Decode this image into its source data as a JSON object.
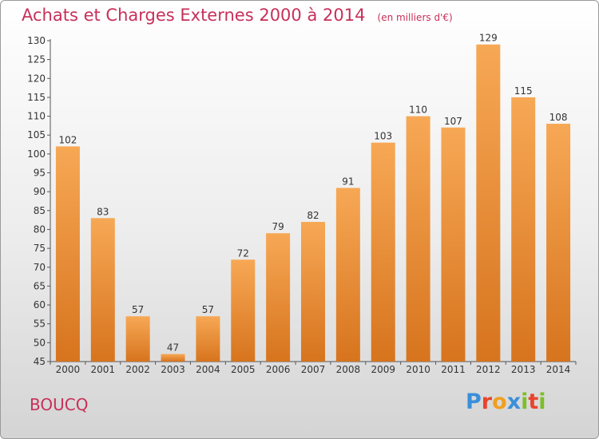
{
  "title": "Achats et Charges Externes 2000 à 2014",
  "unit": "(en milliers d'€)",
  "commune": "BOUCQ",
  "logo": {
    "text": "Proxiti",
    "letters": [
      {
        "ch": "P",
        "color": "#3a8fd9"
      },
      {
        "ch": "r",
        "color": "#e8452c"
      },
      {
        "ch": "o",
        "color": "#f0a020"
      },
      {
        "ch": "x",
        "color": "#3a8fd9"
      },
      {
        "ch": "i",
        "color": "#7cbf2a"
      },
      {
        "ch": "t",
        "color": "#e8452c"
      },
      {
        "ch": "i",
        "color": "#7cbf2a"
      }
    ]
  },
  "colors": {
    "bar_top": "#f7a855",
    "bar_bottom": "#d7741e",
    "title": "#c8305a"
  },
  "chart_data": {
    "type": "bar",
    "categories": [
      "2000",
      "2001",
      "2002",
      "2003",
      "2004",
      "2005",
      "2006",
      "2007",
      "2008",
      "2009",
      "2010",
      "2011",
      "2012",
      "2013",
      "2014"
    ],
    "values": [
      102,
      83,
      57,
      47,
      57,
      72,
      79,
      82,
      91,
      103,
      110,
      107,
      129,
      115,
      108
    ],
    "ylim": [
      45,
      130
    ],
    "yticks": [
      45,
      50,
      55,
      60,
      65,
      70,
      75,
      80,
      85,
      90,
      95,
      100,
      105,
      110,
      115,
      120,
      125,
      130
    ],
    "grid": false,
    "legend": "none"
  }
}
